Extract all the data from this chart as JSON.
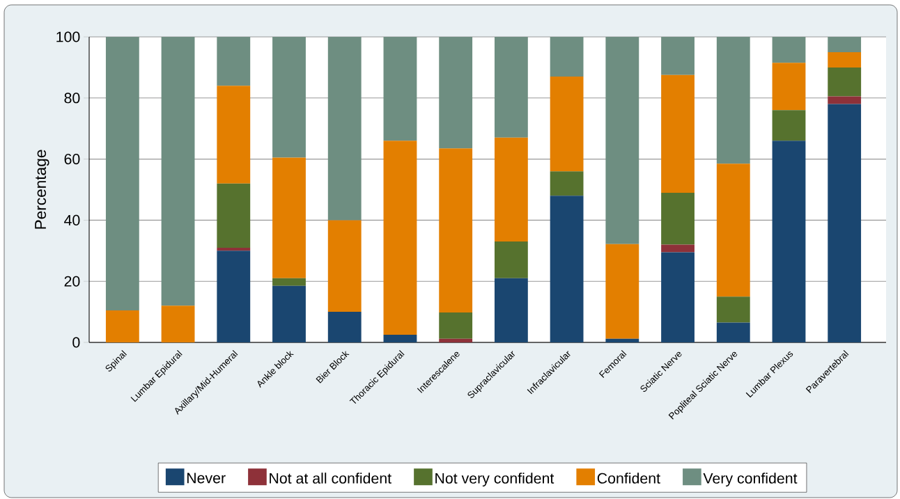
{
  "chart_data": {
    "type": "bar",
    "stacked": true,
    "ylabel": "Percentage",
    "categories": [
      "Spinal",
      "Lumbar Epidural",
      "Axillary/Mid-Humeral",
      "Ankle block",
      "Bier Block",
      "Thoracic Epidural",
      "Interescalene",
      "Supraclavicular",
      "Infraclavicular",
      "Femoral",
      "Sciatic Nerve",
      "Popliteal Sciatic Nerve",
      "Lumbar Plexus",
      "Paravertebral"
    ],
    "series": [
      {
        "name": "Never",
        "color": "#1a4670",
        "values": [
          0,
          0,
          30,
          18.5,
          10,
          2.5,
          0,
          21,
          48,
          1.2,
          29.5,
          6.5,
          66,
          78
        ]
      },
      {
        "name": "Not at all confident",
        "color": "#8e3139",
        "values": [
          0,
          0,
          1,
          0,
          0,
          0,
          1.2,
          0,
          0,
          0,
          2.5,
          0,
          0,
          2.5
        ]
      },
      {
        "name": "Not very confident",
        "color": "#56722e",
        "values": [
          0,
          0,
          21,
          2.5,
          0,
          0,
          8.6,
          12,
          8,
          0,
          17,
          8.5,
          10,
          9.5
        ]
      },
      {
        "name": "Confident",
        "color": "#e37f00",
        "values": [
          10.5,
          12,
          32,
          39.5,
          30,
          63.5,
          53.7,
          34,
          31,
          31,
          38.5,
          43.5,
          15.5,
          5
        ]
      },
      {
        "name": "Very confident",
        "color": "#6e8e81",
        "values": [
          89.5,
          88,
          16,
          39.5,
          60,
          34,
          36.5,
          33,
          13,
          67.8,
          12.5,
          41.5,
          8.5,
          5
        ]
      }
    ],
    "ylim": [
      0,
      100
    ],
    "yticks": [
      0,
      20,
      40,
      60,
      80,
      100
    ],
    "grid": "y",
    "legend": "bottom"
  }
}
